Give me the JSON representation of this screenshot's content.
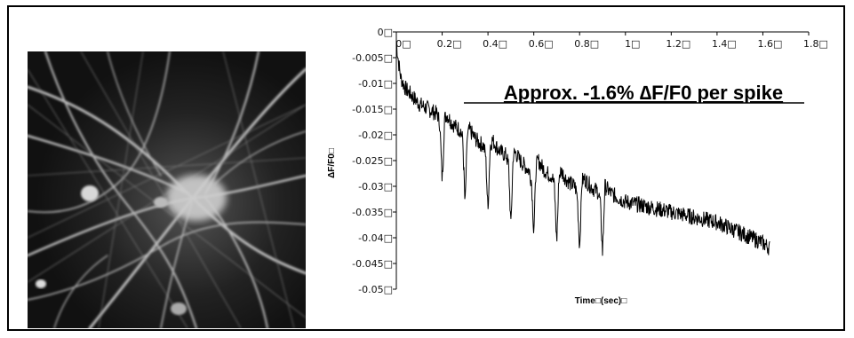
{
  "chart_data": {
    "type": "line",
    "xlabel": "Time□(sec)□",
    "ylabel": "ΔF/F0□",
    "xlim": [
      0,
      1.8
    ],
    "ylim": [
      -0.05,
      0
    ],
    "x_ticks": [
      "0□",
      "0.2□",
      "0.4□",
      "0.6□",
      "0.8□",
      "1□",
      "1.2□",
      "1.4□",
      "1.6□",
      "1.8□"
    ],
    "y_ticks": [
      "0□",
      "-0.005□",
      "-0.01□",
      "-0.015□",
      "-0.02□",
      "-0.025□",
      "-0.03□",
      "-0.035□",
      "-0.04□",
      "-0.045□",
      "-0.05□"
    ],
    "annotation": "Approx. -1.6% ∆F/F0 per spike",
    "grid": false,
    "legend": "none",
    "line_color": "#000000",
    "series": [
      {
        "x": [
          0,
          0.01,
          0.02,
          0.04,
          0.06,
          0.08,
          0.1,
          0.12,
          0.14,
          0.16,
          0.18,
          0.19,
          0.2,
          0.205,
          0.21,
          0.22,
          0.24,
          0.26,
          0.28,
          0.29,
          0.3,
          0.305,
          0.31,
          0.32,
          0.34,
          0.36,
          0.38,
          0.39,
          0.4,
          0.405,
          0.41,
          0.42,
          0.44,
          0.46,
          0.48,
          0.49,
          0.5,
          0.505,
          0.51,
          0.52,
          0.54,
          0.56,
          0.58,
          0.59,
          0.6,
          0.605,
          0.61,
          0.62,
          0.64,
          0.66,
          0.68,
          0.69,
          0.7,
          0.705,
          0.71,
          0.72,
          0.74,
          0.76,
          0.78,
          0.79,
          0.8,
          0.805,
          0.81,
          0.82,
          0.84,
          0.86,
          0.88,
          0.89,
          0.9,
          0.905,
          0.91,
          0.92,
          0.94,
          0.96,
          0.98,
          1.0,
          1.05,
          1.1,
          1.15,
          1.2,
          1.25,
          1.3,
          1.35,
          1.4,
          1.45,
          1.5,
          1.55,
          1.6,
          1.63
        ],
        "y": [
          -0.002,
          -0.006,
          -0.009,
          -0.011,
          -0.012,
          -0.013,
          -0.014,
          -0.0145,
          -0.015,
          -0.0155,
          -0.016,
          -0.018,
          -0.029,
          -0.024,
          -0.017,
          -0.016,
          -0.0175,
          -0.0185,
          -0.019,
          -0.021,
          -0.034,
          -0.027,
          -0.02,
          -0.019,
          -0.0205,
          -0.0215,
          -0.022,
          -0.024,
          -0.035,
          -0.028,
          -0.022,
          -0.021,
          -0.0225,
          -0.0235,
          -0.024,
          -0.026,
          -0.038,
          -0.031,
          -0.024,
          -0.0235,
          -0.025,
          -0.026,
          -0.027,
          -0.029,
          -0.039,
          -0.033,
          -0.026,
          -0.025,
          -0.0265,
          -0.0275,
          -0.028,
          -0.03,
          -0.041,
          -0.035,
          -0.028,
          -0.027,
          -0.0285,
          -0.0295,
          -0.03,
          -0.032,
          -0.042,
          -0.036,
          -0.029,
          -0.0285,
          -0.0295,
          -0.0305,
          -0.031,
          -0.033,
          -0.043,
          -0.037,
          -0.03,
          -0.0305,
          -0.0315,
          -0.032,
          -0.0325,
          -0.033,
          -0.0335,
          -0.034,
          -0.0345,
          -0.035,
          -0.0355,
          -0.036,
          -0.0365,
          -0.037,
          -0.038,
          -0.039,
          -0.04,
          -0.041,
          -0.042
        ]
      }
    ]
  },
  "micrograph": {
    "icon": "neuron-culture-micrograph"
  }
}
